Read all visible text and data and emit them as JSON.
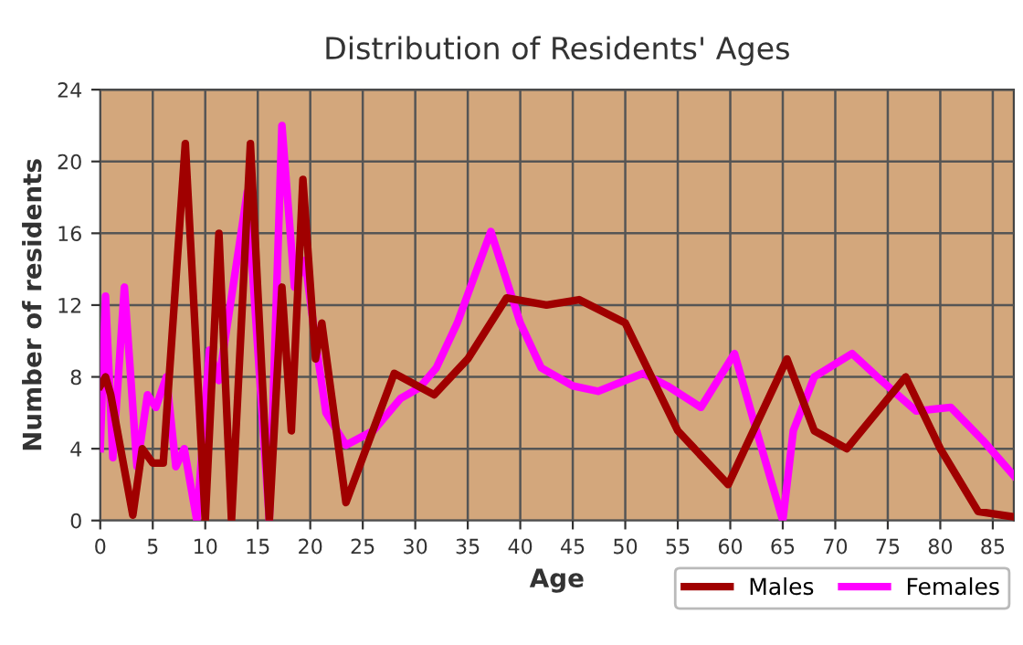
{
  "chart_data": {
    "type": "line",
    "title": "Distribution of Residents' Ages",
    "xlabel": "Age",
    "ylabel": "Number of residents",
    "xlim": [
      0,
      87
    ],
    "ylim": [
      0,
      24
    ],
    "xticks": [
      0,
      5,
      10,
      15,
      20,
      25,
      30,
      35,
      40,
      45,
      50,
      55,
      60,
      65,
      70,
      75,
      80,
      85
    ],
    "yticks": [
      0,
      4,
      8,
      12,
      16,
      20,
      24
    ],
    "grid": true,
    "legend": "bottom right",
    "line_style": "solid",
    "marker": "none",
    "series": [
      {
        "name": "Males",
        "color": "#a00000",
        "x": [
          0,
          0.5,
          1,
          3.1,
          4,
          5,
          6,
          8.1,
          10,
          11.3,
          12.5,
          14.3,
          16.1,
          17.3,
          18.2,
          19.3,
          20.5,
          21.1,
          23.4,
          28,
          31.8,
          35,
          38.7,
          42.5,
          45.6,
          50,
          55,
          59.8,
          65.4,
          68,
          71.1,
          76.7,
          80,
          83.6,
          87
        ],
        "values": [
          7.5,
          8,
          7,
          0.3,
          4,
          3.2,
          3.2,
          21,
          0,
          16,
          0,
          21,
          0,
          13,
          5,
          19,
          9,
          11,
          1,
          8.2,
          7,
          9,
          12.4,
          12,
          12.3,
          11,
          5,
          2,
          9,
          5,
          4,
          8,
          4,
          0.5,
          0.2
        ]
      },
      {
        "name": "Females",
        "color": "#ff00ff",
        "x": [
          0,
          0.5,
          1.2,
          2.3,
          3.5,
          4.5,
          5.3,
          6.3,
          7.2,
          8,
          9.2,
          10.4,
          11.3,
          14,
          16.1,
          17.3,
          18.5,
          19.5,
          20.5,
          21.5,
          23.4,
          26,
          28.6,
          30.4,
          32,
          34,
          37.2,
          40,
          42,
          45,
          47.4,
          51.7,
          54,
          57.2,
          60.4,
          62.5,
          65,
          66,
          68,
          71.6,
          74,
          77.7,
          81,
          84,
          87
        ],
        "values": [
          4,
          12.5,
          3.5,
          13,
          3,
          7,
          6.3,
          8,
          3,
          4,
          0,
          9.5,
          7.8,
          18.3,
          0,
          22,
          13,
          14.5,
          10,
          6,
          4.2,
          5,
          6.8,
          7.4,
          8.5,
          11,
          16.1,
          11,
          8.5,
          7.5,
          7.2,
          8.2,
          7.5,
          6.3,
          9.3,
          5,
          0,
          5,
          8,
          9.3,
          8,
          6.1,
          6.3,
          4.5,
          2.5
        ]
      }
    ]
  }
}
